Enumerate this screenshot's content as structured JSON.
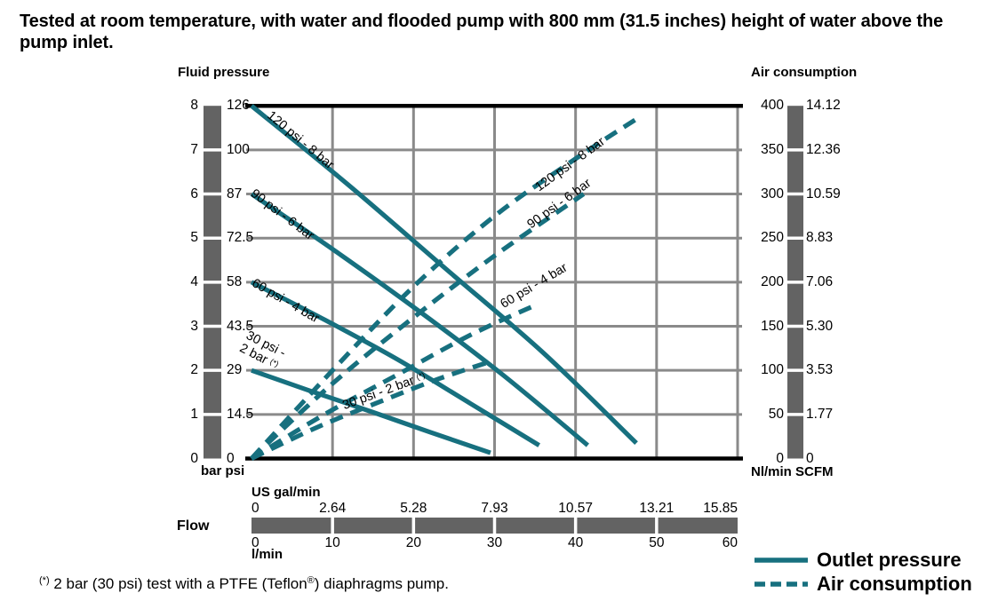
{
  "title": "Tested at room temperature, with water and flooded pump with 800 mm  (31.5 inches) height of water above the pump inlet.",
  "headers": {
    "fluid_pressure": "Fluid pressure",
    "air_consumption": "Air consumption"
  },
  "colors": {
    "accent": "#17707F",
    "grid": "#8A8A8A",
    "scale_bar": "#636363",
    "axis_black": "#000000"
  },
  "axes": {
    "pressure_bar": {
      "unit": "bar",
      "ticks": [
        "0",
        "1",
        "2",
        "3",
        "4",
        "5",
        "6",
        "7",
        "8"
      ]
    },
    "pressure_psi": {
      "unit": "psi",
      "ticks": [
        "0",
        "14.5",
        "29",
        "43.5",
        "58",
        "72.5",
        "87",
        "100",
        "126"
      ]
    },
    "left_unit_label": "bar psi",
    "air_nlmin": {
      "unit": "Nl/min",
      "ticks": [
        "0",
        "50",
        "100",
        "150",
        "200",
        "250",
        "300",
        "350",
        "400"
      ]
    },
    "air_scfm": {
      "unit": "SCFM",
      "ticks": [
        "0",
        "1.77",
        "3.53",
        "5.30",
        "7.06",
        "8.83",
        "10.59",
        "12.36",
        "14.12"
      ]
    },
    "right_unit_label": "Nl/min SCFM",
    "flow_gal": {
      "label": "US gal/min",
      "ticks": [
        "0",
        "2.64",
        "5.28",
        "7.93",
        "10.57",
        "13.21",
        "15.85"
      ]
    },
    "flow_lmin": {
      "label": "l/min",
      "ticks": [
        "0",
        "10",
        "20",
        "30",
        "40",
        "50",
        "60"
      ]
    },
    "flow_label": "Flow"
  },
  "curve_labels": {
    "solid_8": "120 psi - 8 bar",
    "solid_6": "90 psi - 6 bar",
    "solid_4": "60 psi - 4 bar",
    "solid_2_line1": "30 psi -",
    "solid_2_line2": "2 bar ",
    "dashed_8": "120 psi - 8 bar",
    "dashed_6": "90 psi - 6 bar",
    "dashed_4": "60 psi - 4 bar",
    "dashed_2": "30 psi - 2 bar ",
    "star": "(*)"
  },
  "legend": {
    "outlet": "Outlet pressure",
    "air": "Air consumption"
  },
  "footnote": {
    "star": "(*)",
    "body1": " 2 bar (30 psi) test with a PTFE (Teflon",
    "reg": "®",
    "body2": ") diaphragms pump."
  },
  "chart_data": {
    "type": "line",
    "x_axis": {
      "label": "Flow",
      "units": [
        "l/min",
        "US gal/min"
      ],
      "range_lmin": [
        0,
        60
      ],
      "lmin_ticks": [
        0,
        10,
        20,
        30,
        40,
        50,
        60
      ],
      "gal_ticks": [
        0,
        2.64,
        5.28,
        7.93,
        10.57,
        13.21,
        15.85
      ]
    },
    "y_left_axis": {
      "label": "Fluid pressure",
      "units": [
        "bar",
        "psi"
      ],
      "range_bar": [
        0,
        8
      ],
      "bar_ticks": [
        0,
        1,
        2,
        3,
        4,
        5,
        6,
        7,
        8
      ],
      "psi_ticks": [
        0,
        14.5,
        29,
        43.5,
        58,
        72.5,
        87,
        100,
        126
      ]
    },
    "y_right_axis": {
      "label": "Air consumption",
      "units": [
        "Nl/min",
        "SCFM"
      ],
      "range_nlmin": [
        0,
        400
      ],
      "nlmin_ticks": [
        0,
        50,
        100,
        150,
        200,
        250,
        300,
        350,
        400
      ],
      "scfm_ticks": [
        0,
        1.77,
        3.53,
        5.3,
        7.06,
        8.83,
        10.59,
        12.36,
        14.12
      ]
    },
    "grid": true,
    "legend_position": "bottom-right",
    "series": [
      {
        "name": "Outlet pressure 120 psi - 8 bar",
        "group": "outlet_pressure",
        "style": "solid",
        "y_axis": "bar",
        "x_unit": "l/min",
        "y_unit": "bar",
        "points": [
          [
            0,
            8
          ],
          [
            12,
            6.2
          ],
          [
            24,
            4.3
          ],
          [
            36,
            2.4
          ],
          [
            47.5,
            0.35
          ]
        ]
      },
      {
        "name": "Outlet pressure 90 psi - 6 bar",
        "group": "outlet_pressure",
        "style": "solid",
        "y_axis": "bar",
        "x_unit": "l/min",
        "y_unit": "bar",
        "points": [
          [
            0,
            6
          ],
          [
            10,
            4.75
          ],
          [
            21,
            3.3
          ],
          [
            31,
            1.9
          ],
          [
            41.5,
            0.3
          ]
        ]
      },
      {
        "name": "Outlet pressure 60 psi - 4 bar",
        "group": "outlet_pressure",
        "style": "solid",
        "y_axis": "bar",
        "x_unit": "l/min",
        "y_unit": "bar",
        "points": [
          [
            0,
            4
          ],
          [
            9,
            3.15
          ],
          [
            18,
            2.25
          ],
          [
            27,
            1.25
          ],
          [
            35.5,
            0.3
          ]
        ]
      },
      {
        "name": "Outlet pressure 30 psi - 2 bar (*)",
        "group": "outlet_pressure",
        "style": "solid",
        "y_axis": "bar",
        "x_unit": "l/min",
        "y_unit": "bar",
        "points": [
          [
            0,
            2
          ],
          [
            7,
            1.55
          ],
          [
            15,
            1.05
          ],
          [
            22,
            0.6
          ],
          [
            29.5,
            0.13
          ]
        ]
      },
      {
        "name": "Air consumption 120 psi - 8 bar",
        "group": "air_consumption",
        "style": "dashed",
        "y_axis": "nlmin",
        "x_unit": "l/min",
        "y_unit": "Nl/min",
        "points": [
          [
            0,
            0
          ],
          [
            10,
            100
          ],
          [
            20,
            195
          ],
          [
            30,
            275
          ],
          [
            40,
            340
          ],
          [
            47.5,
            385
          ]
        ]
      },
      {
        "name": "Air consumption 90 psi - 6 bar",
        "group": "air_consumption",
        "style": "dashed",
        "y_axis": "nlmin",
        "x_unit": "l/min",
        "y_unit": "Nl/min",
        "points": [
          [
            0,
            0
          ],
          [
            10,
            85
          ],
          [
            20,
            160
          ],
          [
            30,
            230
          ],
          [
            41,
            300
          ]
        ]
      },
      {
        "name": "Air consumption 60 psi - 4 bar",
        "group": "air_consumption",
        "style": "dashed",
        "y_axis": "nlmin",
        "x_unit": "l/min",
        "y_unit": "Nl/min",
        "points": [
          [
            0,
            0
          ],
          [
            9,
            50
          ],
          [
            18,
            95
          ],
          [
            27,
            140
          ],
          [
            35.3,
            175
          ]
        ]
      },
      {
        "name": "Air consumption 30 psi - 2 bar (*)",
        "group": "air_consumption",
        "style": "dashed",
        "y_axis": "nlmin",
        "x_unit": "l/min",
        "y_unit": "Nl/min",
        "points": [
          [
            0,
            0
          ],
          [
            8,
            35
          ],
          [
            16,
            65
          ],
          [
            23,
            90
          ],
          [
            29.5,
            110
          ]
        ]
      }
    ]
  }
}
